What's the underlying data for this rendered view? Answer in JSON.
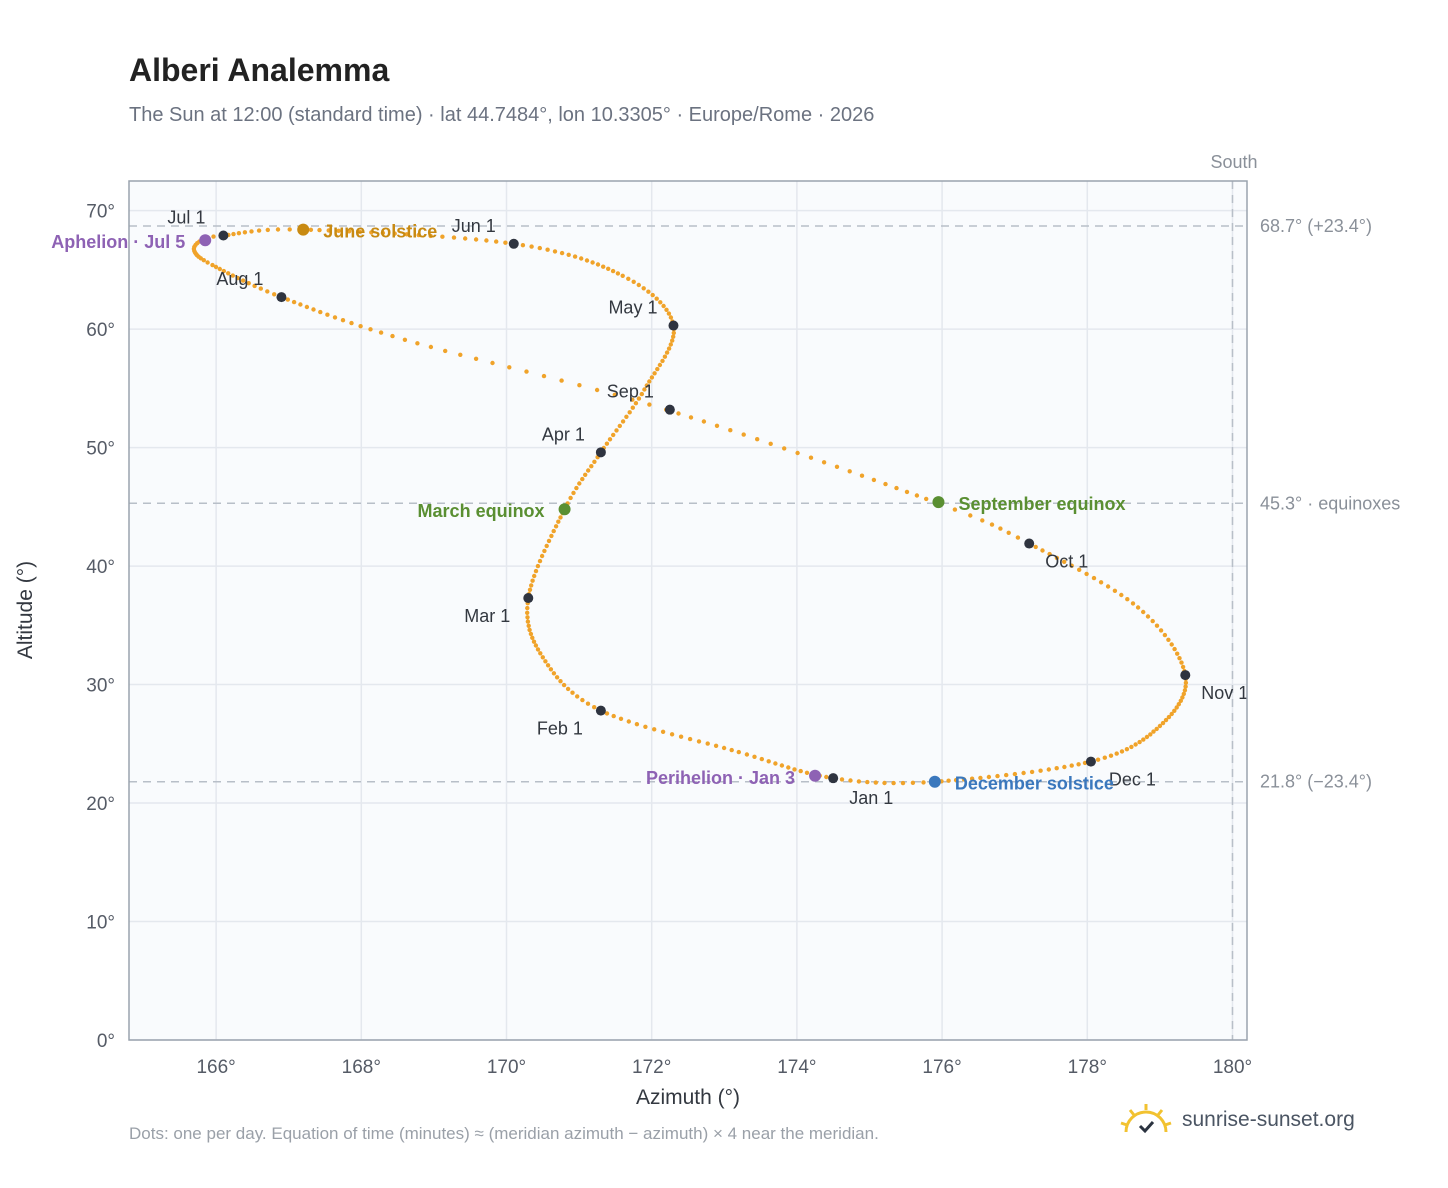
{
  "header": {
    "title": "Alberi Analemma",
    "subtitle": "The Sun at 12:00 (standard time) · lat 44.7484°, lon 10.3305° · Europe/Rome · 2026"
  },
  "footer": {
    "note": "Dots: one per day. Equation of time (minutes) ≈ (meridian azimuth − azimuth) × 4 near the meridian.",
    "brand": "sunrise-sunset.org"
  },
  "chart_data": {
    "type": "scatter",
    "xlabel": "Azimuth (°)",
    "ylabel": "Altitude (°)",
    "xlim": [
      164.8,
      180.2
    ],
    "ylim": [
      0,
      72.5
    ],
    "xticks": [
      166,
      168,
      170,
      172,
      174,
      176,
      178,
      180
    ],
    "yticks": [
      0,
      10,
      20,
      30,
      40,
      50,
      60,
      70
    ],
    "tick_suffix": "°",
    "grid": true,
    "dot_color": "#f0a32a",
    "meridian": {
      "azimuth": 180,
      "label": "South"
    },
    "reference_lines": [
      {
        "altitude": 68.7,
        "label": "68.7° (+23.4°)"
      },
      {
        "altitude": 45.3,
        "label": "45.3° · equinoxes"
      },
      {
        "altitude": 21.8,
        "label": "21.8° (−23.4°)"
      }
    ],
    "curve_keypoints": [
      {
        "day": 1,
        "x": 174.5,
        "y": 22.1
      },
      {
        "day": 15,
        "x": 173.2,
        "y": 24.3
      },
      {
        "day": 32,
        "x": 171.3,
        "y": 27.8
      },
      {
        "day": 46,
        "x": 170.5,
        "y": 32.3
      },
      {
        "day": 60,
        "x": 170.3,
        "y": 37.3
      },
      {
        "day": 79,
        "x": 170.8,
        "y": 44.8
      },
      {
        "day": 91,
        "x": 171.3,
        "y": 49.6
      },
      {
        "day": 105,
        "x": 171.9,
        "y": 54.9
      },
      {
        "day": 121,
        "x": 172.3,
        "y": 60.3
      },
      {
        "day": 135,
        "x": 171.6,
        "y": 64.5
      },
      {
        "day": 152,
        "x": 170.1,
        "y": 67.2
      },
      {
        "day": 172,
        "x": 167.2,
        "y": 68.4
      },
      {
        "day": 182,
        "x": 166.1,
        "y": 67.9
      },
      {
        "day": 186,
        "x": 165.8,
        "y": 67.5
      },
      {
        "day": 192,
        "x": 165.7,
        "y": 66.6
      },
      {
        "day": 200,
        "x": 165.95,
        "y": 65.4
      },
      {
        "day": 213,
        "x": 166.9,
        "y": 62.7
      },
      {
        "day": 228,
        "x": 168.6,
        "y": 59.1
      },
      {
        "day": 244,
        "x": 172.2,
        "y": 53.2
      },
      {
        "day": 266,
        "x": 175.9,
        "y": 45.4
      },
      {
        "day": 274,
        "x": 177.2,
        "y": 41.9
      },
      {
        "day": 290,
        "x": 178.7,
        "y": 36.5
      },
      {
        "day": 305,
        "x": 179.35,
        "y": 30.8
      },
      {
        "day": 320,
        "x": 179.0,
        "y": 26.5
      },
      {
        "day": 335,
        "x": 178.05,
        "y": 23.5
      },
      {
        "day": 355,
        "x": 175.9,
        "y": 21.8
      },
      {
        "day": 366,
        "x": 174.5,
        "y": 22.1
      }
    ],
    "month_markers": [
      {
        "label": "Jan 1",
        "x": 174.5,
        "y": 22.1
      },
      {
        "label": "Feb 1",
        "x": 171.3,
        "y": 27.8
      },
      {
        "label": "Mar 1",
        "x": 170.3,
        "y": 37.3
      },
      {
        "label": "Apr 1",
        "x": 171.3,
        "y": 49.6
      },
      {
        "label": "May 1",
        "x": 172.3,
        "y": 60.3
      },
      {
        "label": "Jun 1",
        "x": 170.1,
        "y": 67.2
      },
      {
        "label": "Jul 1",
        "x": 166.1,
        "y": 67.9
      },
      {
        "label": "Aug 1",
        "x": 166.9,
        "y": 62.7
      },
      {
        "label": "Sep 1",
        "x": 172.25,
        "y": 53.2
      },
      {
        "label": "Oct 1",
        "x": 177.2,
        "y": 41.9
      },
      {
        "label": "Nov 1",
        "x": 179.35,
        "y": 30.8
      },
      {
        "label": "Dec 1",
        "x": 178.05,
        "y": 23.5
      }
    ],
    "events": [
      {
        "label": "June solstice",
        "x": 167.2,
        "y": 68.4,
        "color": "#c88a12"
      },
      {
        "label": "March equinox",
        "x": 170.8,
        "y": 44.8,
        "color": "#5a8f32"
      },
      {
        "label": "September equinox",
        "x": 175.95,
        "y": 45.4,
        "color": "#5a8f32"
      },
      {
        "label": "December solstice",
        "x": 175.9,
        "y": 21.8,
        "color": "#3b78bd"
      },
      {
        "label": "Aphelion · Jul 5",
        "x": 165.85,
        "y": 67.5,
        "color": "#8e62b4"
      },
      {
        "label": "Perihelion · Jan 3",
        "x": 174.25,
        "y": 22.3,
        "color": "#8e62b4"
      }
    ]
  }
}
